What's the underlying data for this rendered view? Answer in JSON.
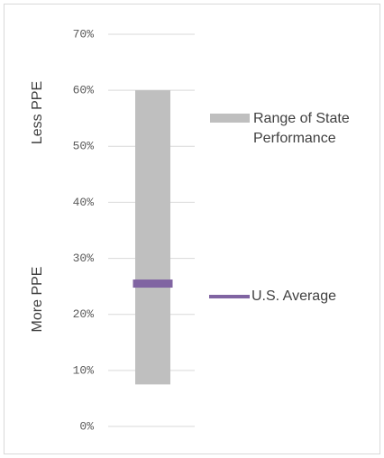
{
  "chart_data": {
    "type": "range",
    "axis_labels": {
      "top": "Less PPE",
      "bottom": "More PPE"
    },
    "ylim": [
      0,
      70
    ],
    "yticks": [
      {
        "value": 0,
        "label": "0%"
      },
      {
        "value": 10,
        "label": "10%"
      },
      {
        "value": 20,
        "label": "20%"
      },
      {
        "value": 30,
        "label": "30%"
      },
      {
        "value": 40,
        "label": "40%"
      },
      {
        "value": 50,
        "label": "50%"
      },
      {
        "value": 60,
        "label": "60%"
      },
      {
        "value": 70,
        "label": "70%"
      }
    ],
    "grid": true,
    "series": [
      {
        "name": "Range of State Performance",
        "color": "#bfbfbf",
        "low": [
          7.5
        ],
        "high": [
          60
        ]
      },
      {
        "name": "U.S. Average",
        "color": "#8064a2",
        "values": [
          25.5
        ]
      }
    ]
  }
}
